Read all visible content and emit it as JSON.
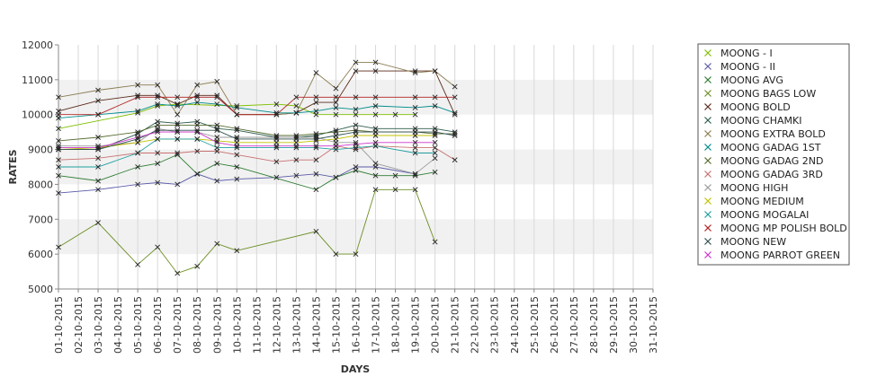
{
  "chart_data": {
    "type": "line",
    "xlabel": "DAYS",
    "ylabel": "RATES",
    "ylim": [
      5000,
      12000
    ],
    "y_ticks": [
      5000,
      6000,
      7000,
      8000,
      9000,
      10000,
      11000,
      12000
    ],
    "categories": [
      "01-10-2015",
      "02-10-2015",
      "03-10-2015",
      "04-10-2015",
      "05-10-2015",
      "06-10-2015",
      "07-10-2015",
      "08-10-2015",
      "09-10-2015",
      "10-10-2015",
      "11-10-2015",
      "12-10-2015",
      "13-10-2015",
      "14-10-2015",
      "15-10-2015",
      "16-10-2015",
      "17-10-2015",
      "18-10-2015",
      "19-10-2015",
      "20-10-2015",
      "21-10-2015",
      "22-10-2015",
      "23-10-2015",
      "24-10-2015",
      "25-10-2015",
      "26-10-2015",
      "27-10-2015",
      "28-10-2015",
      "29-10-2015",
      "30-10-2015",
      "31-10-2015"
    ],
    "legend_position": "right",
    "grid": "alternating horizontal bands",
    "series": [
      {
        "name": "MOONG - I",
        "color": "#7fbf00",
        "points": [
          [
            0,
            9600
          ],
          [
            4,
            10050
          ],
          [
            5,
            10250
          ],
          [
            6,
            10300
          ],
          [
            9,
            10250
          ],
          [
            11,
            10300
          ],
          [
            12,
            10250
          ],
          [
            13,
            10000
          ],
          [
            14,
            10000
          ],
          [
            15,
            10000
          ],
          [
            16,
            10000
          ],
          [
            17,
            10000
          ],
          [
            18,
            10000
          ]
        ]
      },
      {
        "name": "MOONG - II",
        "color": "#5a5aa8",
        "points": [
          [
            0,
            7750
          ],
          [
            2,
            7850
          ],
          [
            4,
            8000
          ],
          [
            5,
            8050
          ],
          [
            6,
            8000
          ],
          [
            7,
            8300
          ],
          [
            8,
            8100
          ],
          [
            9,
            8150
          ],
          [
            11,
            8200
          ],
          [
            12,
            8250
          ],
          [
            13,
            8300
          ],
          [
            14,
            8200
          ],
          [
            15,
            8500
          ],
          [
            16,
            8500
          ],
          [
            18,
            8300
          ]
        ]
      },
      {
        "name": "MOONG AVG",
        "color": "#2e7d32",
        "points": [
          [
            0,
            8250
          ],
          [
            2,
            8100
          ],
          [
            4,
            8500
          ],
          [
            5,
            8600
          ],
          [
            6,
            8850
          ],
          [
            7,
            8300
          ],
          [
            8,
            8600
          ],
          [
            9,
            8500
          ],
          [
            13,
            7850
          ],
          [
            14,
            8200
          ],
          [
            15,
            8400
          ],
          [
            16,
            8250
          ],
          [
            17,
            8250
          ],
          [
            18,
            8250
          ],
          [
            19,
            8350
          ]
        ]
      },
      {
        "name": "MOONG BAGS LOW",
        "color": "#6b8e23",
        "points": [
          [
            0,
            6200
          ],
          [
            2,
            6900
          ],
          [
            4,
            5700
          ],
          [
            5,
            6200
          ],
          [
            6,
            5450
          ],
          [
            7,
            5650
          ],
          [
            8,
            6300
          ],
          [
            9,
            6100
          ],
          [
            13,
            6650
          ],
          [
            14,
            6000
          ],
          [
            15,
            6000
          ],
          [
            16,
            7850
          ],
          [
            17,
            7850
          ],
          [
            18,
            7850
          ],
          [
            19,
            6350
          ]
        ]
      },
      {
        "name": "MOONG BOLD",
        "color": "#5a2a1a",
        "points": [
          [
            0,
            10100
          ],
          [
            2,
            10400
          ],
          [
            4,
            10550
          ],
          [
            5,
            10550
          ],
          [
            6,
            10300
          ],
          [
            7,
            10550
          ],
          [
            8,
            10550
          ],
          [
            9,
            10000
          ],
          [
            11,
            10000
          ],
          [
            12,
            10050
          ],
          [
            13,
            10350
          ],
          [
            14,
            10350
          ],
          [
            15,
            11250
          ],
          [
            16,
            11250
          ],
          [
            18,
            11250
          ],
          [
            19,
            11250
          ],
          [
            20,
            10000
          ]
        ]
      },
      {
        "name": "MOONG CHAMKI",
        "color": "#2e5e4e",
        "points": [
          [
            0,
            9000
          ],
          [
            2,
            9000
          ],
          [
            4,
            9450
          ],
          [
            5,
            9800
          ],
          [
            6,
            9750
          ],
          [
            7,
            9800
          ],
          [
            8,
            9600
          ],
          [
            9,
            9550
          ],
          [
            11,
            9350
          ],
          [
            12,
            9350
          ],
          [
            13,
            9400
          ],
          [
            14,
            9550
          ],
          [
            15,
            9700
          ],
          [
            16,
            9600
          ],
          [
            18,
            9600
          ],
          [
            19,
            9600
          ],
          [
            20,
            9500
          ]
        ]
      },
      {
        "name": "MOONG EXTRA BOLD",
        "color": "#8b7d52",
        "points": [
          [
            0,
            10500
          ],
          [
            2,
            10700
          ],
          [
            4,
            10850
          ],
          [
            5,
            10850
          ],
          [
            6,
            10000
          ],
          [
            7,
            10850
          ],
          [
            8,
            10950
          ],
          [
            9,
            10000
          ],
          [
            11,
            10000
          ],
          [
            12,
            10050
          ],
          [
            13,
            11200
          ],
          [
            14,
            10750
          ],
          [
            15,
            11500
          ],
          [
            16,
            11500
          ],
          [
            18,
            11200
          ],
          [
            19,
            11250
          ],
          [
            20,
            10800
          ]
        ]
      },
      {
        "name": "MOONG GADAG 1ST",
        "color": "#008b8b",
        "points": [
          [
            0,
            9900
          ],
          [
            2,
            10000
          ],
          [
            4,
            10100
          ],
          [
            5,
            10300
          ],
          [
            6,
            10250
          ],
          [
            7,
            10350
          ],
          [
            8,
            10300
          ],
          [
            9,
            10200
          ],
          [
            11,
            10050
          ],
          [
            12,
            10050
          ],
          [
            13,
            10100
          ],
          [
            14,
            10200
          ],
          [
            15,
            10150
          ],
          [
            16,
            10250
          ],
          [
            18,
            10200
          ],
          [
            19,
            10250
          ],
          [
            20,
            10050
          ]
        ]
      },
      {
        "name": "MOONG GADAG 2ND",
        "color": "#556b2f",
        "points": [
          [
            0,
            9250
          ],
          [
            2,
            9350
          ],
          [
            4,
            9500
          ],
          [
            5,
            9700
          ],
          [
            6,
            9700
          ],
          [
            7,
            9700
          ],
          [
            8,
            9700
          ],
          [
            9,
            9600
          ],
          [
            11,
            9400
          ],
          [
            12,
            9400
          ],
          [
            13,
            9450
          ],
          [
            14,
            9500
          ],
          [
            15,
            9550
          ],
          [
            16,
            9500
          ],
          [
            18,
            9500
          ],
          [
            19,
            9450
          ],
          [
            20,
            9450
          ]
        ]
      },
      {
        "name": "MOONG GADAG 3RD",
        "color": "#c87070",
        "points": [
          [
            0,
            8700
          ],
          [
            2,
            8750
          ],
          [
            4,
            8900
          ],
          [
            5,
            8900
          ],
          [
            6,
            8900
          ],
          [
            7,
            8950
          ],
          [
            8,
            8950
          ],
          [
            9,
            8850
          ],
          [
            11,
            8650
          ],
          [
            12,
            8700
          ],
          [
            13,
            8700
          ],
          [
            14,
            9100
          ],
          [
            15,
            9000
          ],
          [
            16,
            9100
          ],
          [
            18,
            9050
          ],
          [
            19,
            9050
          ],
          [
            20,
            8700
          ]
        ]
      },
      {
        "name": "MOONG HIGH",
        "color": "#999999",
        "points": [
          [
            0,
            9100
          ],
          [
            2,
            9100
          ],
          [
            4,
            9200
          ],
          [
            5,
            9600
          ],
          [
            6,
            9500
          ],
          [
            7,
            9500
          ],
          [
            8,
            9350
          ],
          [
            9,
            9350
          ],
          [
            11,
            9350
          ],
          [
            12,
            9350
          ],
          [
            13,
            9350
          ],
          [
            14,
            9200
          ],
          [
            15,
            9200
          ],
          [
            16,
            8600
          ],
          [
            18,
            8300
          ],
          [
            19,
            8750
          ]
        ]
      },
      {
        "name": "MOONG MEDIUM",
        "color": "#c0c000",
        "points": [
          [
            0,
            9000
          ],
          [
            2,
            9050
          ],
          [
            4,
            9200
          ],
          [
            5,
            9300
          ],
          [
            6,
            9300
          ],
          [
            7,
            9300
          ],
          [
            8,
            9250
          ],
          [
            9,
            9200
          ],
          [
            11,
            9200
          ],
          [
            12,
            9200
          ],
          [
            13,
            9250
          ],
          [
            14,
            9300
          ],
          [
            15,
            9400
          ],
          [
            16,
            9400
          ],
          [
            18,
            9400
          ],
          [
            19,
            9400
          ]
        ]
      },
      {
        "name": "MOONG MOGALAI",
        "color": "#1f9ea0",
        "points": [
          [
            0,
            8500
          ],
          [
            2,
            8500
          ],
          [
            4,
            8900
          ],
          [
            5,
            9300
          ],
          [
            6,
            9300
          ],
          [
            7,
            9300
          ],
          [
            8,
            9050
          ],
          [
            9,
            9050
          ],
          [
            11,
            9050
          ],
          [
            12,
            9050
          ],
          [
            13,
            9050
          ],
          [
            14,
            9000
          ],
          [
            15,
            9050
          ],
          [
            16,
            9100
          ],
          [
            18,
            8900
          ],
          [
            19,
            8900
          ]
        ]
      },
      {
        "name": "MOONG MP POLISH BOLD",
        "color": "#b22222",
        "points": [
          [
            0,
            10000
          ],
          [
            2,
            10000
          ],
          [
            4,
            10500
          ],
          [
            5,
            10500
          ],
          [
            6,
            10500
          ],
          [
            7,
            10500
          ],
          [
            8,
            10500
          ],
          [
            9,
            10000
          ],
          [
            11,
            10000
          ],
          [
            12,
            10500
          ],
          [
            13,
            10500
          ],
          [
            14,
            10500
          ],
          [
            15,
            10500
          ],
          [
            16,
            10500
          ],
          [
            18,
            10500
          ],
          [
            19,
            10500
          ],
          [
            20,
            10500
          ]
        ]
      },
      {
        "name": "MOONG NEW",
        "color": "#2f4f4f",
        "points": [
          [
            0,
            9000
          ],
          [
            2,
            9000
          ],
          [
            4,
            9300
          ],
          [
            5,
            9550
          ],
          [
            6,
            9550
          ],
          [
            7,
            9550
          ],
          [
            8,
            9550
          ],
          [
            9,
            9300
          ],
          [
            11,
            9300
          ],
          [
            12,
            9300
          ],
          [
            13,
            9300
          ],
          [
            14,
            9400
          ],
          [
            15,
            9500
          ],
          [
            16,
            9500
          ],
          [
            18,
            9500
          ],
          [
            19,
            9500
          ],
          [
            20,
            9400
          ]
        ]
      },
      {
        "name": "MOONG PARROT GREEN",
        "color": "#cc33cc",
        "points": [
          [
            0,
            9050
          ],
          [
            2,
            9050
          ],
          [
            4,
            9350
          ],
          [
            5,
            9500
          ],
          [
            6,
            9500
          ],
          [
            7,
            9500
          ],
          [
            8,
            9200
          ],
          [
            9,
            9100
          ],
          [
            11,
            9100
          ],
          [
            12,
            9100
          ],
          [
            13,
            9100
          ],
          [
            14,
            9100
          ],
          [
            15,
            9150
          ],
          [
            16,
            9200
          ],
          [
            18,
            9200
          ],
          [
            19,
            9200
          ]
        ]
      }
    ]
  }
}
